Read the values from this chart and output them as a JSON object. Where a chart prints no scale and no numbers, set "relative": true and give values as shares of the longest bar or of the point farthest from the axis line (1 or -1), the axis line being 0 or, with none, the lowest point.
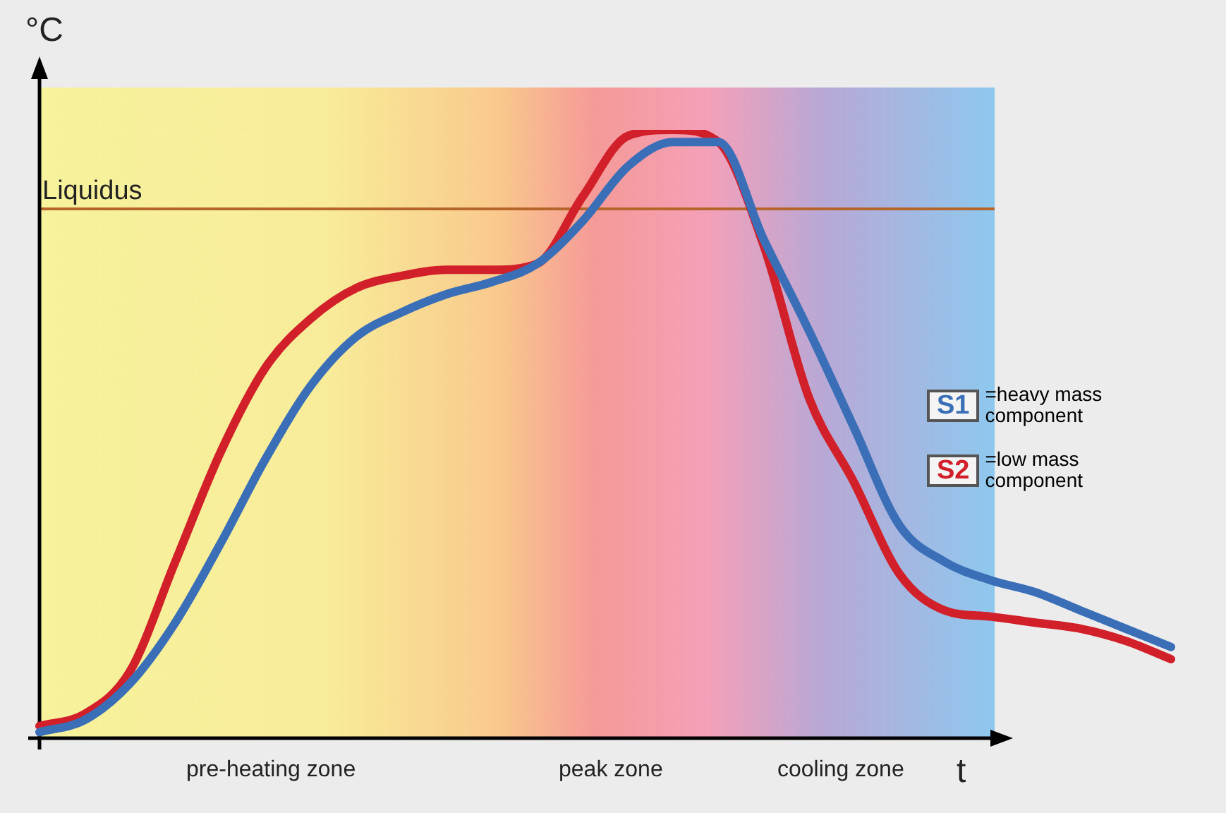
{
  "chart_data": {
    "type": "line",
    "relative": true,
    "xlabel": "t",
    "ylabel": "°C",
    "legend": "right",
    "categories": [
      null,
      null,
      null,
      null,
      null,
      null,
      null,
      null,
      null,
      null,
      null,
      null,
      null,
      null,
      null,
      null,
      null,
      null,
      null,
      null,
      null,
      null,
      null,
      null,
      null,
      null
    ],
    "series": [
      {
        "name": "S1 =heavy mass component",
        "color": "#3a6fb8",
        "values": [
          0.01,
          0.03,
          0.09,
          0.19,
          0.32,
          0.46,
          0.58,
          0.66,
          0.7,
          0.73,
          0.75,
          0.78,
          0.85,
          0.94,
          0.98,
          0.98,
          0.82,
          0.67,
          0.51,
          0.35,
          0.29,
          0.26,
          0.24,
          0.21,
          0.18,
          0.15
        ]
      },
      {
        "name": "S2 =low mass component",
        "color": "#d2202a",
        "values": [
          0.02,
          0.04,
          0.11,
          0.29,
          0.47,
          0.61,
          0.69,
          0.74,
          0.76,
          0.77,
          0.77,
          0.78,
          0.89,
          0.99,
          1,
          0.98,
          0.81,
          0.56,
          0.42,
          0.27,
          0.21,
          0.2,
          0.19,
          0.18,
          0.16,
          0.13
        ]
      }
    ],
    "ref_lines": [
      {
        "axis": "y",
        "value": 0.87,
        "label": "Liquidus",
        "color": "#b5652a"
      }
    ],
    "annotations": [
      "pre-heating zone",
      "peak zone",
      "cooling zone"
    ]
  }
}
